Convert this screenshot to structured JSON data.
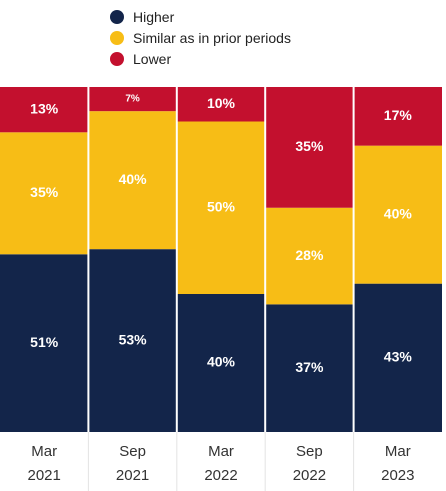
{
  "chart_data": {
    "type": "bar",
    "stacked": true,
    "ylim": [
      0,
      100
    ],
    "categories": [
      [
        "Mar",
        "2021"
      ],
      [
        "Sep",
        "2021"
      ],
      [
        "Mar",
        "2022"
      ],
      [
        "Sep",
        "2022"
      ],
      [
        "Mar",
        "2023"
      ]
    ],
    "series": [
      {
        "name": "Higher",
        "color": "#13254a",
        "values": [
          51,
          53,
          40,
          37,
          43
        ],
        "labels": [
          "51%",
          "53%",
          "40%",
          "37%",
          "43%"
        ]
      },
      {
        "name": "Similar as in prior periods",
        "color": "#f7bd16",
        "values": [
          35,
          40,
          50,
          28,
          40
        ],
        "labels": [
          "35%",
          "40%",
          "50%",
          "28%",
          "40%"
        ]
      },
      {
        "name": "Lower",
        "color": "#c3102e",
        "values": [
          13,
          7,
          10,
          35,
          17
        ],
        "labels": [
          "13%",
          "7%",
          "10%",
          "35%",
          "17%"
        ]
      }
    ],
    "legend_position": "top"
  }
}
